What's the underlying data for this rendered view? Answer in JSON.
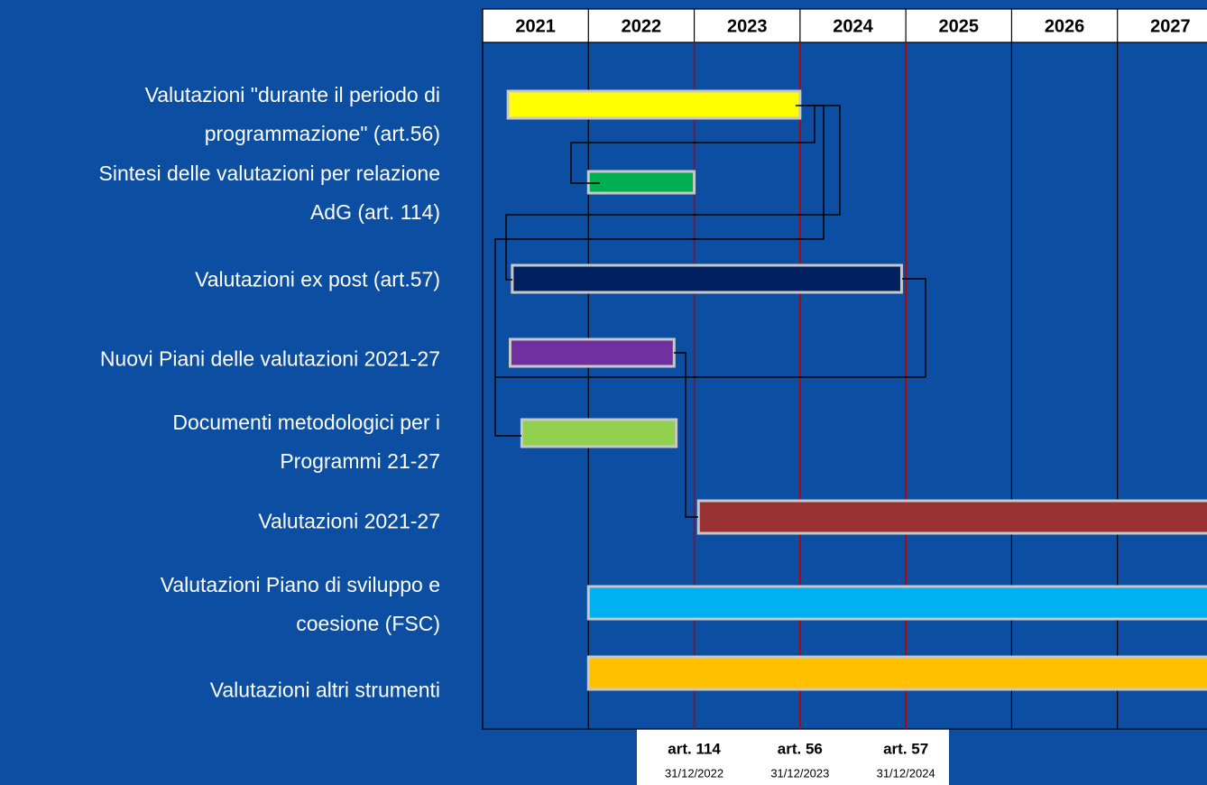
{
  "chart_data": {
    "type": "gantt",
    "xlim": [
      2021,
      2028
    ],
    "years": [
      2021,
      2022,
      2023,
      2024,
      2025,
      2026,
      2027
    ],
    "tasks": [
      {
        "label": [
          "Valutazioni \"durante il periodo di",
          "programmazione\" (art.56)"
        ],
        "start": 2021.24,
        "end": 2024.0,
        "color": "#ffff00"
      },
      {
        "label": [
          "Sintesi delle valutazioni per relazione",
          "AdG (art. 114)"
        ],
        "start": 2022.0,
        "end": 2023.0,
        "color": "#00b050"
      },
      {
        "label": [
          "Valutazioni ex post (art.57)"
        ],
        "start": 2021.28,
        "end": 2024.96,
        "color": "#002060"
      },
      {
        "label": [
          "Nuovi Piani delle valutazioni 2021-27"
        ],
        "start": 2021.26,
        "end": 2022.81,
        "color": "#7030a0"
      },
      {
        "label": [
          "Documenti metodologici per i",
          "Programmi 21-27"
        ],
        "start": 2021.37,
        "end": 2022.83,
        "color": "#92d050"
      },
      {
        "label": [
          "Valutazioni 2021-27"
        ],
        "start": 2023.04,
        "end": 2028,
        "color": "#993333"
      },
      {
        "label": [
          "Valutazioni Piano di sviluppo e",
          "coesione (FSC)"
        ],
        "start": 2022.0,
        "end": 2028,
        "color": "#00b0f0"
      },
      {
        "label": [
          "Valutazioni altri strumenti"
        ],
        "start": 2022.0,
        "end": 2028,
        "color": "#ffc000"
      }
    ],
    "milestones": [
      {
        "title": "art. 114",
        "date": "31/12/2022",
        "x": 2023,
        "color": "#c00000"
      },
      {
        "title": "art. 56",
        "date": "31/12/2023",
        "x": 2024,
        "color": "#c00000"
      },
      {
        "title": "art. 57",
        "date": "31/12/2024",
        "x": 2025,
        "color": "#c00000"
      }
    ]
  }
}
